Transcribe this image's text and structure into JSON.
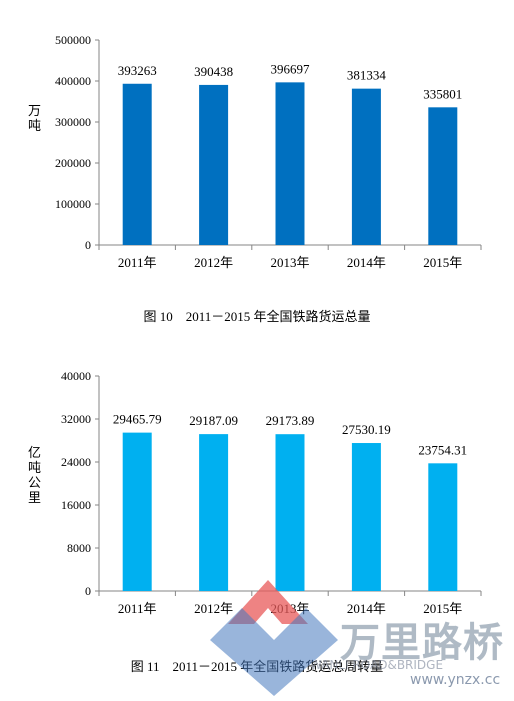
{
  "chart_data": [
    {
      "type": "bar",
      "categories": [
        "2011年",
        "2012年",
        "2013年",
        "2014年",
        "2015年"
      ],
      "values": [
        393263,
        390438,
        396697,
        381334,
        335801
      ],
      "value_labels": [
        "393263",
        "390438",
        "396697",
        "381334",
        "335801"
      ],
      "yticks": [
        "0",
        "100000",
        "200000",
        "300000",
        "400000",
        "500000"
      ],
      "ylim": [
        0,
        500000
      ],
      "ylabel": "万吨",
      "color": "#0070C0",
      "caption": "图 10　2011－2015 年全国铁路货运总量"
    },
    {
      "type": "bar",
      "categories": [
        "2011年",
        "2012年",
        "2013年",
        "2014年",
        "2015年"
      ],
      "values": [
        29465.79,
        29187.09,
        29173.89,
        27530.19,
        23754.31
      ],
      "value_labels": [
        "29465.79",
        "29187.09",
        "29173.89",
        "27530.19",
        "23754.31"
      ],
      "yticks": [
        "0",
        "8000",
        "16000",
        "24000",
        "32000",
        "40000"
      ],
      "ylim": [
        0,
        40000
      ],
      "ylabel": "亿吨公里",
      "color": "#00B0F0",
      "caption": "图 11　2011－2015 年全国铁路货运总周转量"
    }
  ],
  "watermark": {
    "brand_cn": "万里路桥",
    "brand_en": "WANLI ROAD&BRIDGE",
    "url": "www.ynzx.cc"
  }
}
